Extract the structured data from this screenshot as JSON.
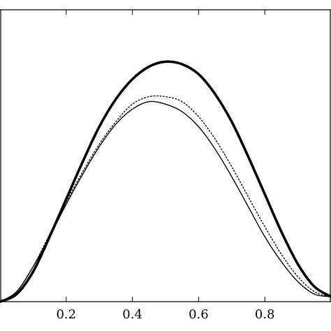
{
  "chart_data": {
    "type": "line",
    "title": "",
    "xlabel": "",
    "ylabel": "",
    "xlim": [
      0.0,
      1.0
    ],
    "ylim": [
      0.0,
      1.0
    ],
    "grid": false,
    "x_ticks": [
      0.2,
      0.4,
      0.6,
      0.8
    ],
    "x_tick_labels": [
      "0.2",
      "0.4",
      "0.6",
      "0.8"
    ],
    "x": [
      0.0,
      0.05,
      0.1,
      0.15,
      0.2,
      0.25,
      0.3,
      0.35,
      0.4,
      0.45,
      0.5,
      0.55,
      0.6,
      0.65,
      0.7,
      0.75,
      0.8,
      0.85,
      0.9,
      0.95,
      1.0
    ],
    "series": [
      {
        "style": "thick-solid",
        "color": "#000000",
        "values": [
          0.0,
          0.03,
          0.12,
          0.26,
          0.41,
          0.56,
          0.7,
          0.81,
          0.89,
          0.94,
          0.96,
          0.95,
          0.91,
          0.83,
          0.72,
          0.58,
          0.43,
          0.28,
          0.15,
          0.06,
          0.02
        ]
      },
      {
        "style": "dotted",
        "color": "#000000",
        "values": [
          0.0,
          0.04,
          0.14,
          0.27,
          0.4,
          0.52,
          0.63,
          0.72,
          0.79,
          0.82,
          0.82,
          0.8,
          0.74,
          0.65,
          0.54,
          0.42,
          0.3,
          0.19,
          0.1,
          0.04,
          0.02
        ]
      },
      {
        "style": "thin-solid",
        "color": "#000000",
        "values": [
          0.0,
          0.04,
          0.14,
          0.26,
          0.39,
          0.51,
          0.62,
          0.71,
          0.77,
          0.8,
          0.79,
          0.76,
          0.7,
          0.61,
          0.5,
          0.38,
          0.26,
          0.16,
          0.08,
          0.03,
          0.02
        ]
      }
    ]
  }
}
